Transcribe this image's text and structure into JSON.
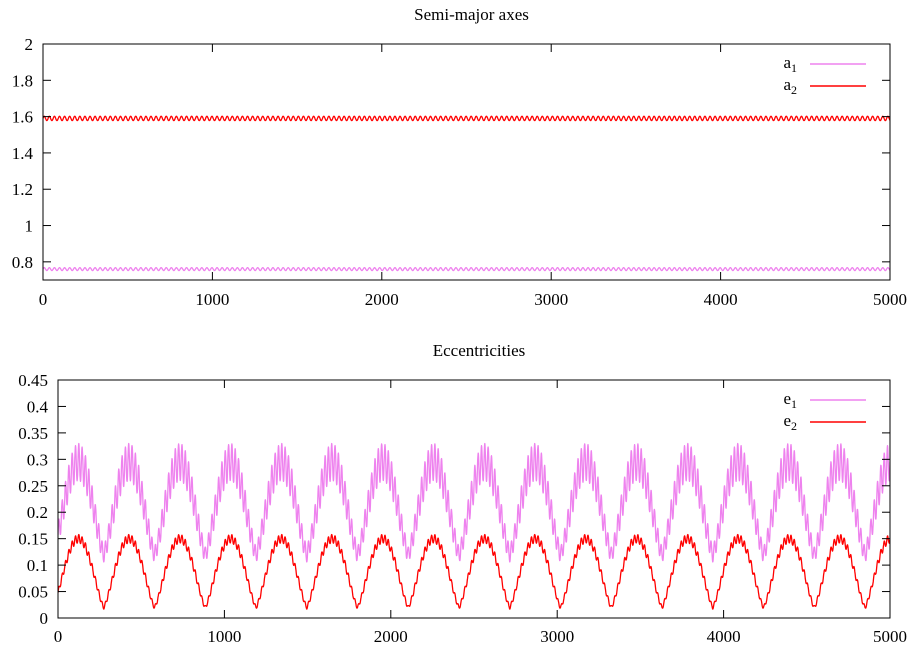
{
  "chart_data": [
    {
      "type": "line",
      "title": "Semi-major axes",
      "xlim": [
        0,
        5000
      ],
      "ylim": [
        0.7,
        2.0
      ],
      "x_ticks": [
        0,
        1000,
        2000,
        3000,
        4000,
        5000
      ],
      "y_ticks": [
        0.8,
        1.0,
        1.2,
        1.4,
        1.6,
        1.8,
        2.0
      ],
      "x_tick_labels": [
        "0",
        "1000",
        "2000",
        "3000",
        "4000",
        "5000"
      ],
      "y_tick_labels": [
        "0.8",
        "1",
        "1.2",
        "1.4",
        "1.6",
        "1.8",
        "2"
      ],
      "grid": false,
      "legend_position": "top-right",
      "series": [
        {
          "name": "a",
          "subscript": "1",
          "color": "#ee82ee",
          "mean": 0.76,
          "amplitude": 0.008,
          "period": 30
        },
        {
          "name": "a",
          "subscript": "2",
          "color": "#ff0000",
          "mean": 1.59,
          "amplitude": 0.012,
          "period": 30
        }
      ]
    },
    {
      "type": "line",
      "title": "Eccentricities",
      "xlim": [
        0,
        5000
      ],
      "ylim": [
        0,
        0.45
      ],
      "x_ticks": [
        0,
        1000,
        2000,
        3000,
        4000,
        5000
      ],
      "y_ticks": [
        0,
        0.05,
        0.1,
        0.15,
        0.2,
        0.25,
        0.3,
        0.35,
        0.4,
        0.45
      ],
      "x_tick_labels": [
        "0",
        "1000",
        "2000",
        "3000",
        "4000",
        "5000"
      ],
      "y_tick_labels": [
        "0",
        "0.05",
        "0.1",
        "0.15",
        "0.2",
        "0.25",
        "0.3",
        "0.35",
        "0.4",
        "0.45"
      ],
      "grid": false,
      "legend_position": "top-right",
      "secular_period": 305,
      "series": [
        {
          "name": "e",
          "subscript": "1",
          "color": "#ee82ee",
          "max": 0.33,
          "min": 0.12,
          "fast_amplitude": 0.035,
          "fast_period": 20
        },
        {
          "name": "e",
          "subscript": "2",
          "color": "#ff0000",
          "max": 0.158,
          "min": 0.02,
          "fast_amplitude": 0.008,
          "fast_period": 20
        }
      ]
    }
  ]
}
